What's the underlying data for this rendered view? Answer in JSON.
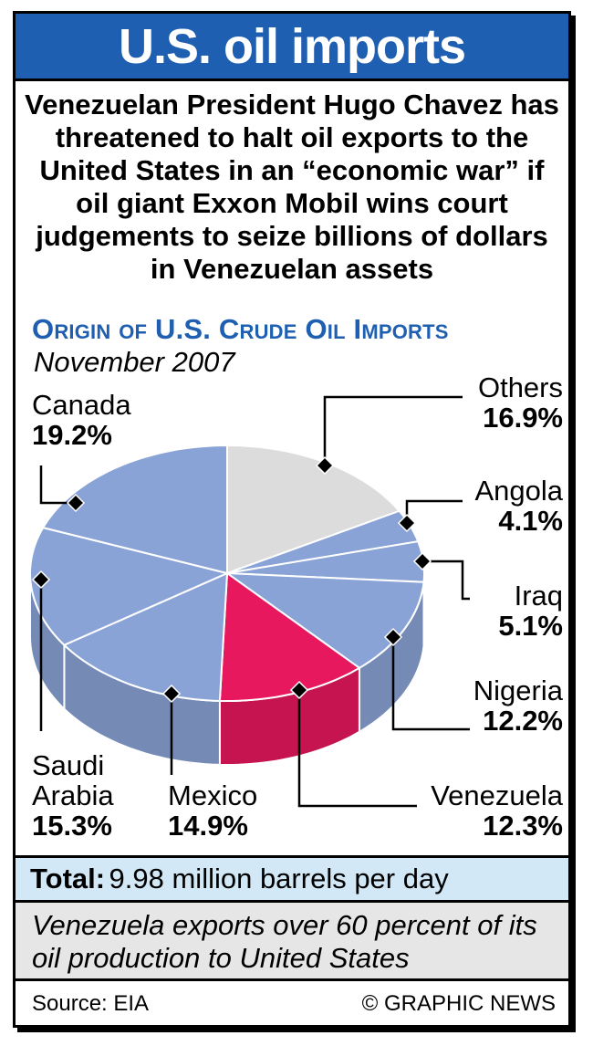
{
  "header": {
    "title": "U.S. oil imports"
  },
  "intro": "Venezuelan President Hugo Chavez has threatened to halt oil exports to the United States in an “economic war” if oil giant Exxon Mobil wins court judgements to seize billions of dollars in Venezuelan assets",
  "chart_data": {
    "type": "pie",
    "title": "Origin of U.S. Crude Oil Imports",
    "subtitle": "November 2007",
    "unit": "%",
    "slices": [
      {
        "label": "Others",
        "value": 16.9,
        "display": "16.9%",
        "color": "#dcdcdc"
      },
      {
        "label": "Angola",
        "value": 4.1,
        "display": "4.1%",
        "color": "#8aa3d6"
      },
      {
        "label": "Iraq",
        "value": 5.1,
        "display": "5.1%",
        "color": "#8aa3d6"
      },
      {
        "label": "Nigeria",
        "value": 12.2,
        "display": "12.2%",
        "color": "#8aa3d6"
      },
      {
        "label": "Venezuela",
        "value": 12.3,
        "display": "12.3%",
        "color": "#e8185e"
      },
      {
        "label": "Mexico",
        "value": 14.9,
        "display": "14.9%",
        "color": "#8aa3d6"
      },
      {
        "label": "Saudi Arabia",
        "value": 15.3,
        "display": "15.3%",
        "color": "#8aa3d6"
      },
      {
        "label": "Canada",
        "value": 19.2,
        "display": "19.2%",
        "color": "#8aa3d6"
      }
    ],
    "labels": {
      "saudi_line1": "Saudi",
      "saudi_line2": "Arabia"
    }
  },
  "total": {
    "label": "Total:",
    "value": "9.98 million barrels per day"
  },
  "note": "Venezuela exports over 60 percent of its oil production to United States",
  "footer": {
    "source": "Source: EIA",
    "credit": "© GRAPHIC NEWS"
  },
  "colors": {
    "header_blue": "#1f5fb1",
    "pie_blue": "#8aa3d6",
    "venezuela_red": "#e8185e",
    "others_gray": "#dcdcdc",
    "total_bg": "#d3e8f6",
    "note_bg": "#e6e6e6"
  }
}
